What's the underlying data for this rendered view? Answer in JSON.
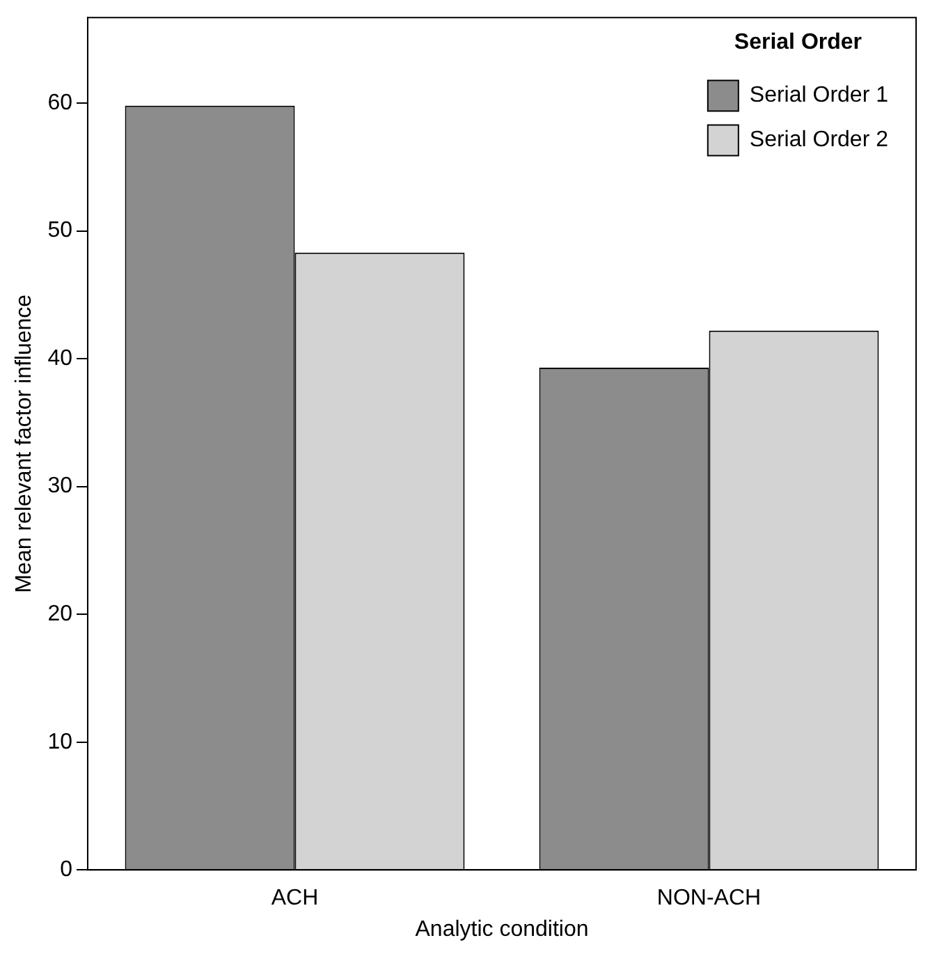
{
  "chart_data": {
    "type": "bar",
    "xlabel": "Analytic condition",
    "ylabel": "Mean relevant factor influence",
    "legend_title": "Serial Order",
    "categories": [
      "ACH",
      "NON-ACH"
    ],
    "series": [
      {
        "name": "Serial Order 1",
        "color": "#8c8c8c",
        "values": [
          59.8,
          39.3
        ]
      },
      {
        "name": "Serial Order 2",
        "color": "#d3d3d3",
        "values": [
          48.3,
          42.2
        ]
      }
    ],
    "ylim": [
      0,
      66.7
    ],
    "yticks": [
      0,
      10,
      20,
      30,
      40,
      50,
      60
    ],
    "grid": false,
    "legend": "top right"
  }
}
